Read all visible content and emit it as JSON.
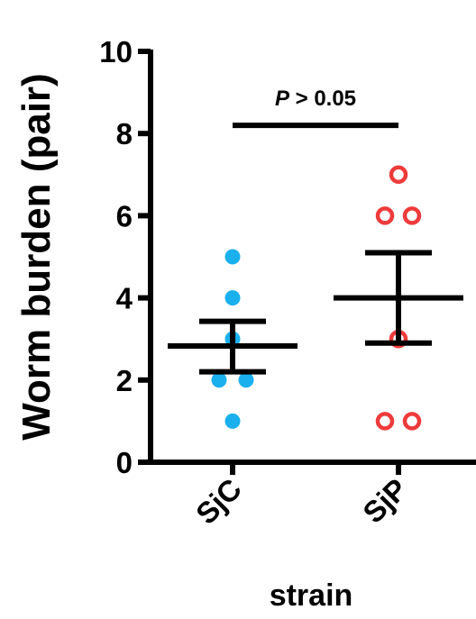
{
  "chart_data": {
    "type": "scatter",
    "title": "",
    "xlabel": "strain",
    "ylabel": "Worm burden (pair)",
    "ylim": [
      0,
      10
    ],
    "yticks": [
      0,
      2,
      4,
      6,
      8,
      10
    ],
    "grid": false,
    "categories": [
      "SjC",
      "SjP"
    ],
    "series": [
      {
        "category": "SjC",
        "marker": "filled-circle",
        "color": "#1ab0ee",
        "points": [
          5,
          4,
          3,
          2,
          2,
          1
        ],
        "mean": 2.83,
        "sem_upper": 3.43,
        "sem_lower": 2.2
      },
      {
        "category": "SjP",
        "marker": "open-circle",
        "color": "#ee3b3b",
        "points": [
          7,
          6,
          6,
          3,
          1,
          1
        ],
        "mean": 4.0,
        "sem_upper": 5.1,
        "sem_lower": 2.9
      }
    ],
    "annotations": [
      {
        "text_italic": "P",
        "text_rest": " > 0.05",
        "y": 8.2
      }
    ]
  }
}
